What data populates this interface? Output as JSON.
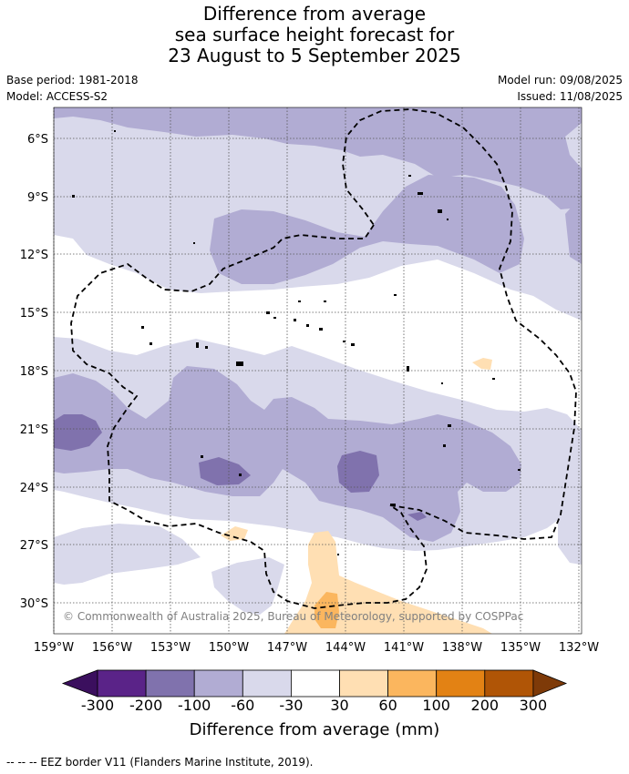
{
  "title_lines": [
    "Difference from average",
    "sea surface height forecast for",
    "23 August to 5 September 2025"
  ],
  "base_period": "Base period: 1981-2018",
  "model": "Model: ACCESS-S2",
  "model_run": "Model run: 09/08/2025",
  "issued": "Issued: 11/08/2025",
  "copyright": "© Commonwealth of Australia 2025, Bureau of Meteorology, supported by COSPPac",
  "lat_labels": [
    "6°S",
    "9°S",
    "12°S",
    "15°S",
    "18°S",
    "21°S",
    "24°S",
    "27°S",
    "30°S"
  ],
  "lon_labels": [
    "159°W",
    "156°W",
    "153°W",
    "150°W",
    "147°W",
    "144°W",
    "141°W",
    "138°W",
    "135°W",
    "132°W"
  ],
  "colorbar": {
    "title": "Difference from average (mm)",
    "ticks": [
      "-300",
      "-200",
      "-100",
      "-60",
      "-30",
      "30",
      "60",
      "100",
      "200",
      "300"
    ],
    "colors": {
      "under": "#3b0f5e",
      "c1": "#5a2388",
      "c2": "#8072ad",
      "c3": "#b1acd3",
      "c4": "#d9d9eb",
      "c5": "#ffffff",
      "c6": "#ffdfb3",
      "c7": "#fbb65e",
      "c8": "#e38214",
      "c9": "#b05506",
      "over": "#7e3a08"
    }
  },
  "footer": "--  --  -- EEZ border V11 (Flanders Marine Institute, 2019)."
}
